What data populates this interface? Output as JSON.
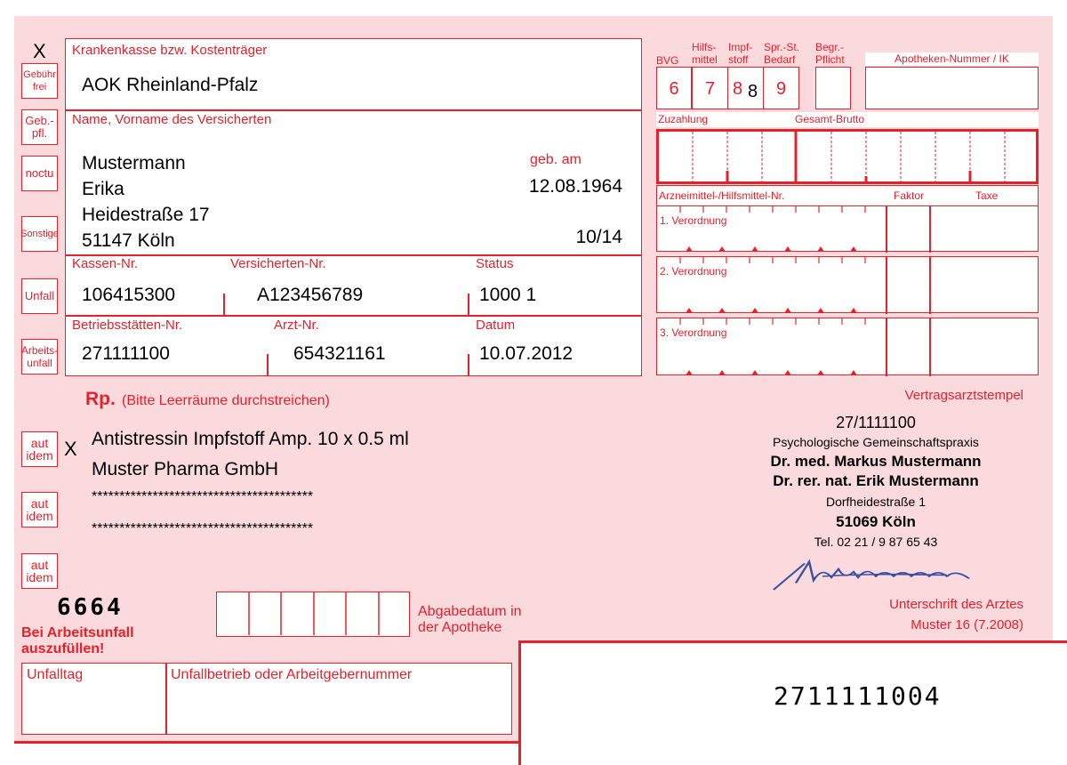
{
  "colors": {
    "form_red": "#e8202a",
    "form_background": "#fbdadd",
    "signature": "#3a4fa0"
  },
  "checkboxes": [
    {
      "label": "Gebühr frei",
      "checked": true,
      "mark": "X"
    },
    {
      "label": "Geb.- pfl.",
      "checked": false
    },
    {
      "label": "noctu",
      "checked": false
    },
    {
      "label": "Sonstige",
      "checked": false
    },
    {
      "label": "Unfall",
      "checked": false
    },
    {
      "label": "Arbeits- unfall",
      "checked": false
    }
  ],
  "aut_idem": [
    {
      "label": "aut idem",
      "checked": true,
      "mark": "X"
    },
    {
      "label": "aut idem",
      "checked": false
    },
    {
      "label": "aut idem",
      "checked": false
    }
  ],
  "insurer": {
    "label": "Krankenkasse bzw. Kostenträger",
    "value": "AOK Rheinland-Pfalz"
  },
  "patient": {
    "label": "Name, Vorname des Versicherten",
    "lastname": "Mustermann",
    "firstname": "Erika",
    "street": "Heidestraße 17",
    "city": "51147 Köln",
    "dob_label": "geb. am",
    "dob": "12.08.1964",
    "validity": "10/14"
  },
  "ids": {
    "kassen_label": "Kassen-Nr.",
    "kassen": "106415300",
    "versicherten_label": "Versicherten-Nr.",
    "versicherten": "A123456789",
    "status_label": "Status",
    "status": "1000 1",
    "betriebs_label": "Betriebsstätten-Nr.",
    "betriebs": "271111100",
    "arzt_label": "Arzt-Nr.",
    "arzt": "654321161",
    "datum_label": "Datum",
    "datum": "10.07.2012"
  },
  "codes": {
    "bvg": "BVG",
    "hilfsmittel": "Hilfs- mittel",
    "impfstoff": "Impf- stoff",
    "spr": "Spr.-St. Bedarf",
    "begr": "Begr.- Pflicht",
    "values": [
      "6",
      "7",
      "8",
      "9"
    ],
    "impfstoff_mark": "8",
    "apotheke_label": "Apotheken-Nummer / IK"
  },
  "pricing": {
    "zuzahlung": "Zuzahlung",
    "brutto": "Gesamt-Brutto",
    "arznei": "Arzneimittel-/Hilfsmittel-Nr.",
    "faktor": "Faktor",
    "taxe": "Taxe",
    "rows": [
      "1. Verordnung",
      "2. Verordnung",
      "3. Verordnung"
    ]
  },
  "rx": {
    "rp": "Rp.",
    "hint": "(Bitte Leerräume durchstreichen)",
    "lines": [
      "Antistressin Impfstoff Amp. 10 x 0.5 ml",
      "Muster Pharma GmbH",
      "****************************************",
      "****************************************"
    ]
  },
  "stamp": {
    "label": "Vertragsarztstempel",
    "bsnr": "27/1111100",
    "practice": "Psychologische Gemeinschaftspraxis",
    "doctor1": "Dr. med. Markus Mustermann",
    "doctor2": "Dr. rer. nat. Erik Mustermann",
    "street": "Dorfheidestraße 1",
    "city": "51069 Köln",
    "phone": "Tel. 02 21 / 9 87 65 43",
    "signature_label": "Unterschrift des Arztes",
    "form_id": "Muster 16 (7.2008)"
  },
  "bottom": {
    "code_small": "6664",
    "abgabe": "Abgabedatum in der Apotheke",
    "warning": "Bei Arbeitsunfall auszufüllen!",
    "unfalltag": "Unfalltag",
    "unfallbetrieb": "Unfallbetrieb oder Arbeitgebernummer",
    "barcode_text": "2711111004"
  }
}
